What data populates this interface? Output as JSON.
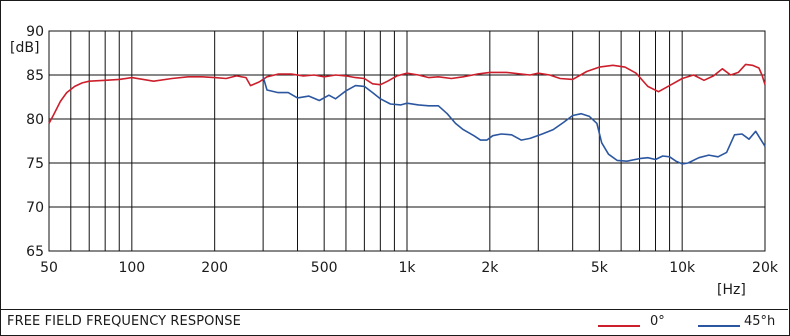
{
  "chart_data": {
    "type": "line",
    "title": "FREE FIELD FREQUENCY RESPONSE",
    "xlabel": "[Hz]",
    "ylabel": "[dB]",
    "xscale": "log",
    "xlim": [
      50,
      20000
    ],
    "ylim": [
      65,
      90
    ],
    "grid": true,
    "legend_position": "bottom-right",
    "x_ticks": [
      {
        "value": 50,
        "label": "50"
      },
      {
        "value": 100,
        "label": "100"
      },
      {
        "value": 200,
        "label": "200"
      },
      {
        "value": 500,
        "label": "500"
      },
      {
        "value": 1000,
        "label": "1k"
      },
      {
        "value": 2000,
        "label": "2k"
      },
      {
        "value": 5000,
        "label": "5k"
      },
      {
        "value": 10000,
        "label": "10k"
      },
      {
        "value": 20000,
        "label": "20k"
      }
    ],
    "y_ticks": [
      {
        "value": 65,
        "label": "65"
      },
      {
        "value": 70,
        "label": "70"
      },
      {
        "value": 75,
        "label": "75"
      },
      {
        "value": 80,
        "label": "80"
      },
      {
        "value": 85,
        "label": "85"
      },
      {
        "value": 90,
        "label": "90"
      }
    ],
    "series": [
      {
        "name": "0°",
        "color": "#cc1f2b",
        "points": [
          [
            50,
            79.5
          ],
          [
            52,
            80.5
          ],
          [
            55,
            82
          ],
          [
            58,
            83
          ],
          [
            62,
            83.7
          ],
          [
            66,
            84.1
          ],
          [
            70,
            84.3
          ],
          [
            80,
            84.4
          ],
          [
            90,
            84.5
          ],
          [
            100,
            84.7
          ],
          [
            110,
            84.5
          ],
          [
            120,
            84.3
          ],
          [
            140,
            84.6
          ],
          [
            160,
            84.8
          ],
          [
            180,
            84.8
          ],
          [
            200,
            84.7
          ],
          [
            220,
            84.6
          ],
          [
            240,
            84.9
          ],
          [
            260,
            84.7
          ],
          [
            270,
            83.8
          ],
          [
            290,
            84.2
          ],
          [
            310,
            84.8
          ],
          [
            340,
            85.1
          ],
          [
            380,
            85.1
          ],
          [
            420,
            84.9
          ],
          [
            460,
            85.0
          ],
          [
            500,
            84.8
          ],
          [
            550,
            85.0
          ],
          [
            600,
            84.9
          ],
          [
            650,
            84.7
          ],
          [
            700,
            84.6
          ],
          [
            750,
            84.0
          ],
          [
            800,
            83.9
          ],
          [
            850,
            84.3
          ],
          [
            920,
            84.9
          ],
          [
            1000,
            85.2
          ],
          [
            1100,
            85.0
          ],
          [
            1200,
            84.7
          ],
          [
            1300,
            84.8
          ],
          [
            1450,
            84.6
          ],
          [
            1600,
            84.8
          ],
          [
            1800,
            85.1
          ],
          [
            2000,
            85.3
          ],
          [
            2300,
            85.3
          ],
          [
            2600,
            85.1
          ],
          [
            2800,
            85.0
          ],
          [
            3000,
            85.2
          ],
          [
            3300,
            85.0
          ],
          [
            3600,
            84.6
          ],
          [
            4000,
            84.5
          ],
          [
            4500,
            85.4
          ],
          [
            5000,
            85.9
          ],
          [
            5600,
            86.1
          ],
          [
            6200,
            85.9
          ],
          [
            6800,
            85.2
          ],
          [
            7500,
            83.7
          ],
          [
            8200,
            83.1
          ],
          [
            9000,
            83.8
          ],
          [
            10000,
            84.6
          ],
          [
            11000,
            85.0
          ],
          [
            12000,
            84.4
          ],
          [
            13000,
            84.9
          ],
          [
            14000,
            85.7
          ],
          [
            15000,
            85.0
          ],
          [
            16000,
            85.3
          ],
          [
            17000,
            86.2
          ],
          [
            18000,
            86.1
          ],
          [
            19000,
            85.8
          ],
          [
            19500,
            85.0
          ],
          [
            20000,
            83.9
          ]
        ]
      },
      {
        "name": "45°h",
        "color": "#2c57a0",
        "points": [
          [
            300,
            84.8
          ],
          [
            310,
            83.3
          ],
          [
            340,
            83.0
          ],
          [
            370,
            83.0
          ],
          [
            400,
            82.4
          ],
          [
            440,
            82.6
          ],
          [
            480,
            82.1
          ],
          [
            520,
            82.7
          ],
          [
            550,
            82.3
          ],
          [
            600,
            83.2
          ],
          [
            650,
            83.8
          ],
          [
            700,
            83.7
          ],
          [
            750,
            83.0
          ],
          [
            800,
            82.3
          ],
          [
            870,
            81.7
          ],
          [
            950,
            81.6
          ],
          [
            1000,
            81.8
          ],
          [
            1100,
            81.6
          ],
          [
            1200,
            81.5
          ],
          [
            1300,
            81.5
          ],
          [
            1400,
            80.6
          ],
          [
            1500,
            79.5
          ],
          [
            1600,
            78.8
          ],
          [
            1750,
            78.1
          ],
          [
            1850,
            77.6
          ],
          [
            1950,
            77.6
          ],
          [
            2050,
            78.1
          ],
          [
            2200,
            78.3
          ],
          [
            2400,
            78.2
          ],
          [
            2600,
            77.6
          ],
          [
            2800,
            77.8
          ],
          [
            3100,
            78.3
          ],
          [
            3400,
            78.8
          ],
          [
            3700,
            79.6
          ],
          [
            4000,
            80.4
          ],
          [
            4300,
            80.6
          ],
          [
            4600,
            80.3
          ],
          [
            4900,
            79.5
          ],
          [
            5100,
            77.3
          ],
          [
            5400,
            76.0
          ],
          [
            5800,
            75.3
          ],
          [
            6300,
            75.2
          ],
          [
            7000,
            75.5
          ],
          [
            7500,
            75.6
          ],
          [
            8000,
            75.4
          ],
          [
            8500,
            75.8
          ],
          [
            9000,
            75.7
          ],
          [
            9500,
            75.2
          ],
          [
            10000,
            74.9
          ],
          [
            10500,
            75.0
          ],
          [
            11500,
            75.6
          ],
          [
            12500,
            75.9
          ],
          [
            13500,
            75.7
          ],
          [
            14500,
            76.2
          ],
          [
            15500,
            78.2
          ],
          [
            16500,
            78.3
          ],
          [
            17500,
            77.7
          ],
          [
            18500,
            78.6
          ],
          [
            19200,
            77.8
          ],
          [
            20000,
            76.9
          ]
        ]
      }
    ]
  }
}
